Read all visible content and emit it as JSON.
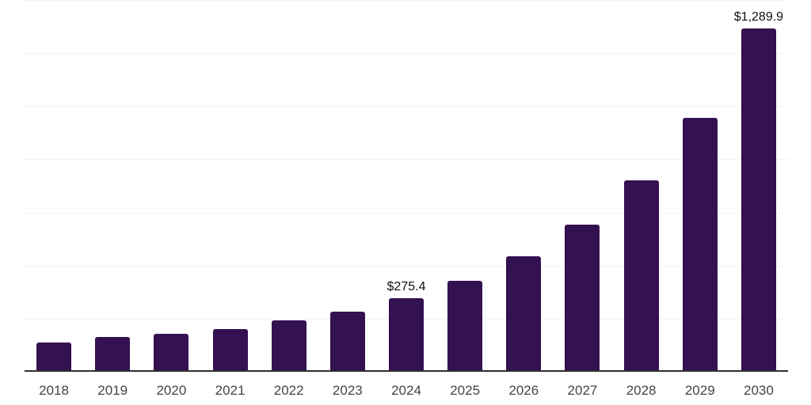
{
  "chart": {
    "background_color": "#ffffff",
    "bar_color": "#341150",
    "gridline_color": "#f2f2f2",
    "axis_line_color": "#2e2e2e",
    "tick_label_color": "#444444",
    "data_label_color": "#111111"
  },
  "chart_data": {
    "type": "bar",
    "title": "",
    "xlabel": "",
    "ylabel": "",
    "categories": [
      "2018",
      "2019",
      "2020",
      "2021",
      "2022",
      "2023",
      "2024",
      "2025",
      "2026",
      "2027",
      "2028",
      "2029",
      "2030"
    ],
    "values": [
      107,
      128,
      140,
      158,
      191,
      223,
      275.4,
      340,
      432,
      551,
      718,
      953,
      1289.9
    ],
    "data_labels": [
      "",
      "",
      "",
      "",
      "",
      "",
      "$275.4",
      "",
      "",
      "",
      "",
      "",
      "$1,289.9"
    ],
    "ylim": [
      0,
      1400
    ],
    "gridline_interval": 200,
    "grid": "horizontal",
    "legend": "none",
    "y_tick_labels_visible": false
  }
}
